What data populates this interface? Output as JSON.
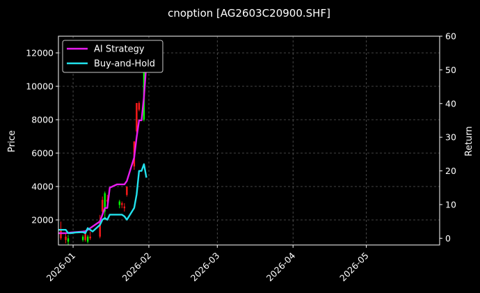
{
  "chart_data": {
    "type": "line",
    "title": "cnoption [AG2603C20900.SHF]",
    "xlabel": "",
    "ylabel_left": "Price",
    "ylabel_right": "Return",
    "x_range": [
      "2025-12-26",
      "2026-05-31"
    ],
    "ylim_left": [
      500,
      13000
    ],
    "ylim_right": [
      -2,
      60
    ],
    "x_ticks": [
      "2026-01-01",
      "2026-02-01",
      "2026-03-01",
      "2026-04-01",
      "2026-05-01"
    ],
    "x_tick_labels": [
      "2026-01",
      "2026-02",
      "2026-03",
      "2026-04",
      "2026-05"
    ],
    "y_ticks_left": [
      2000,
      4000,
      6000,
      8000,
      10000,
      12000
    ],
    "y_ticks_right": [
      0,
      10,
      20,
      30,
      40,
      50,
      60
    ],
    "grid": true,
    "legend_position": "top-left",
    "series": [
      {
        "name": "AI Strategy",
        "color": "#e81cf0",
        "axis": "right",
        "points": [
          [
            "2025-12-26",
            1.5
          ],
          [
            "2025-12-29",
            1.5
          ],
          [
            "2025-12-30",
            1.6
          ],
          [
            "2025-12-31",
            1.7
          ],
          [
            "2026-01-02",
            1.8
          ],
          [
            "2026-01-05",
            2.0
          ],
          [
            "2026-01-06",
            2.1
          ],
          [
            "2026-01-07",
            2.5
          ],
          [
            "2026-01-08",
            3.0
          ],
          [
            "2026-01-09",
            3.5
          ],
          [
            "2026-01-12",
            5.0
          ],
          [
            "2026-01-13",
            7.0
          ],
          [
            "2026-01-14",
            9.0
          ],
          [
            "2026-01-15",
            9.0
          ],
          [
            "2026-01-16",
            15.0
          ],
          [
            "2026-01-19",
            16.0
          ],
          [
            "2026-01-20",
            16.0
          ],
          [
            "2026-01-21",
            16.0
          ],
          [
            "2026-01-22",
            16.0
          ],
          [
            "2026-01-23",
            17.0
          ],
          [
            "2026-01-26",
            24.0
          ],
          [
            "2026-01-27",
            30.0
          ],
          [
            "2026-01-28",
            35.0
          ],
          [
            "2026-01-29",
            35.0
          ],
          [
            "2026-01-30",
            42.0
          ],
          [
            "2026-01-31",
            52.0
          ]
        ]
      },
      {
        "name": "Buy-and-Hold",
        "color": "#22e3ee",
        "axis": "right",
        "points": [
          [
            "2025-12-26",
            2.5
          ],
          [
            "2025-12-29",
            2.5
          ],
          [
            "2025-12-30",
            1.5
          ],
          [
            "2025-12-31",
            1.5
          ],
          [
            "2026-01-02",
            1.7
          ],
          [
            "2026-01-05",
            1.8
          ],
          [
            "2026-01-06",
            1.5
          ],
          [
            "2026-01-07",
            3.0
          ],
          [
            "2026-01-08",
            2.5
          ],
          [
            "2026-01-09",
            2.0
          ],
          [
            "2026-01-12",
            4.0
          ],
          [
            "2026-01-13",
            5.5
          ],
          [
            "2026-01-14",
            6.0
          ],
          [
            "2026-01-15",
            5.5
          ],
          [
            "2026-01-16",
            7.0
          ],
          [
            "2026-01-19",
            7.0
          ],
          [
            "2026-01-20",
            7.0
          ],
          [
            "2026-01-21",
            7.0
          ],
          [
            "2026-01-22",
            6.5
          ],
          [
            "2026-01-23",
            5.5
          ],
          [
            "2026-01-26",
            9.0
          ],
          [
            "2026-01-27",
            13.0
          ],
          [
            "2026-01-28",
            20.0
          ],
          [
            "2026-01-29",
            20.0
          ],
          [
            "2026-01-30",
            22.0
          ],
          [
            "2026-01-31",
            18.0
          ]
        ]
      }
    ],
    "candles": {
      "up_color": "#00ff00",
      "down_color": "#ff1a1a",
      "items": [
        {
          "date": "2025-12-27",
          "open": 1400,
          "high": 1900,
          "low": 800,
          "close": 900
        },
        {
          "date": "2025-12-29",
          "open": 1000,
          "high": 1200,
          "low": 600,
          "close": 800
        },
        {
          "date": "2025-12-30",
          "open": 700,
          "high": 1100,
          "low": 500,
          "close": 900
        },
        {
          "date": "2026-01-05",
          "open": 800,
          "high": 1100,
          "low": 700,
          "close": 1000
        },
        {
          "date": "2026-01-06",
          "open": 1200,
          "high": 1300,
          "low": 700,
          "close": 800
        },
        {
          "date": "2026-01-07",
          "open": 700,
          "high": 1100,
          "low": 600,
          "close": 1000
        },
        {
          "date": "2026-01-08",
          "open": 1000,
          "high": 1300,
          "low": 800,
          "close": 900
        },
        {
          "date": "2026-01-12",
          "open": 2000,
          "high": 2300,
          "low": 900,
          "close": 1000
        },
        {
          "date": "2026-01-13",
          "open": 3200,
          "high": 3400,
          "low": 2400,
          "close": 2500
        },
        {
          "date": "2026-01-14",
          "open": 2500,
          "high": 3700,
          "low": 2000,
          "close": 3600
        },
        {
          "date": "2026-01-15",
          "open": 3200,
          "high": 3500,
          "low": 3000,
          "close": 3100
        },
        {
          "date": "2026-01-20",
          "open": 2900,
          "high": 3200,
          "low": 2700,
          "close": 3100
        },
        {
          "date": "2026-01-21",
          "open": 3000,
          "high": 3100,
          "low": 2700,
          "close": 2900
        },
        {
          "date": "2026-01-22",
          "open": 2800,
          "high": 3000,
          "low": 2500,
          "close": 2700
        },
        {
          "date": "2026-01-23",
          "open": 4000,
          "high": 4000,
          "low": 3400,
          "close": 3500
        },
        {
          "date": "2026-01-26",
          "open": 6700,
          "high": 6700,
          "low": 5000,
          "close": 5200
        },
        {
          "date": "2026-01-27",
          "open": 9000,
          "high": 9000,
          "low": 7200,
          "close": 7300
        },
        {
          "date": "2026-01-28",
          "open": 9000,
          "high": 9100,
          "low": 8500,
          "close": 8600
        },
        {
          "date": "2026-01-30",
          "open": 8000,
          "high": 12500,
          "low": 7900,
          "close": 12400
        }
      ]
    }
  }
}
